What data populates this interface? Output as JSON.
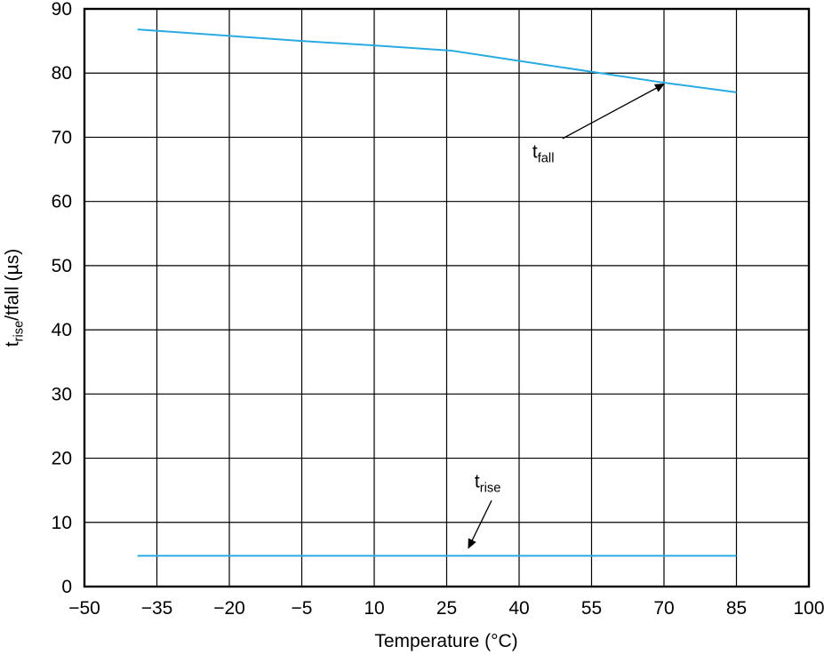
{
  "chart_data": {
    "type": "line",
    "title": "",
    "xlabel": "Temperature (°C)",
    "ylabel": "t_rise/tfall (µs)",
    "ylabel_parts": {
      "pre": "t",
      "sub": "rise",
      "post": "/tfall (µs)"
    },
    "xlim": [
      -50,
      100
    ],
    "ylim": [
      0,
      90
    ],
    "grid": true,
    "line_color": "#29abe2",
    "x_ticks": [
      -50,
      -35,
      -20,
      -5,
      10,
      25,
      40,
      55,
      70,
      85,
      100
    ],
    "x_tick_labels": [
      "−50",
      "−35",
      "−20",
      "−5",
      "10",
      "25",
      "40",
      "55",
      "70",
      "85",
      "100"
    ],
    "y_ticks": [
      0,
      10,
      20,
      30,
      40,
      50,
      60,
      70,
      80,
      90
    ],
    "y_tick_labels": [
      "0",
      "10",
      "20",
      "30",
      "40",
      "50",
      "60",
      "70",
      "80",
      "90"
    ],
    "series": [
      {
        "name": "t_fall",
        "x": [
          -39,
          -20,
          -5,
          10,
          26,
          40,
          55,
          70,
          85
        ],
        "y": [
          86.8,
          85.8,
          85.0,
          84.3,
          83.5,
          81.9,
          80.2,
          78.5,
          77.0
        ]
      },
      {
        "name": "t_rise",
        "x": [
          -39,
          85
        ],
        "y": [
          4.8,
          4.8
        ]
      }
    ],
    "annotations": [
      {
        "name": "t_fall",
        "parts": {
          "pre": "t",
          "sub": "fall"
        },
        "label_x": 45,
        "label_y": 67.5,
        "arrow": {
          "x1": 49,
          "y1": 69.8,
          "x2": 70,
          "y2": 78.3
        }
      },
      {
        "name": "t_rise",
        "parts": {
          "pre": "t",
          "sub": "rise"
        },
        "label_x": 33.5,
        "label_y": 16.0,
        "arrow": {
          "x1": 34.3,
          "y1": 13.4,
          "x2": 29.5,
          "y2": 6.0
        }
      }
    ]
  }
}
